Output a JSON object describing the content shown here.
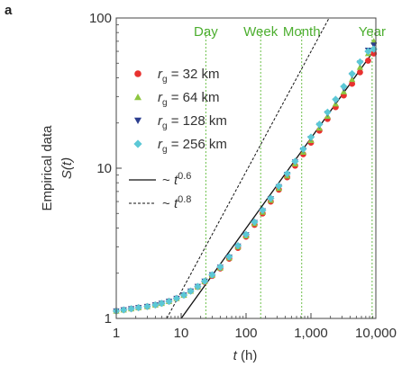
{
  "chart_data": {
    "type": "scatter",
    "panel_label": "a",
    "xscale": "log",
    "yscale": "log",
    "xlim": [
      1,
      10000
    ],
    "ylim": [
      1,
      100
    ],
    "x_ticks": [
      1,
      10,
      100,
      1000,
      10000
    ],
    "x_tick_labels": [
      "1",
      "10",
      "100",
      "1,000",
      "10,000"
    ],
    "y_ticks": [
      1,
      10,
      100
    ],
    "y_tick_labels": [
      "1",
      "10",
      "100"
    ],
    "xlabel_var": "t",
    "xlabel_unit": " (h)",
    "ylabel_line1": "Empirical data",
    "ylabel_line2": "S(t)",
    "grid": false,
    "legend_position": "upper-left",
    "event_markers": [
      {
        "label": "Day",
        "x": 24
      },
      {
        "label": "Week",
        "x": 168
      },
      {
        "label": "Month",
        "x": 720
      },
      {
        "label": "Year",
        "x": 8760
      }
    ],
    "series": [
      {
        "name_prefix": "r",
        "name_sub": "g",
        "name_value": " = 32 km",
        "marker": "circle",
        "color": "#e8312f",
        "points": [
          [
            1,
            1.12
          ],
          [
            1.3,
            1.14
          ],
          [
            1.7,
            1.16
          ],
          [
            2.2,
            1.18
          ],
          [
            3,
            1.2
          ],
          [
            4,
            1.23
          ],
          [
            5,
            1.26
          ],
          [
            6.5,
            1.3
          ],
          [
            8.5,
            1.36
          ],
          [
            11,
            1.43
          ],
          [
            14,
            1.52
          ],
          [
            18,
            1.62
          ],
          [
            23,
            1.75
          ],
          [
            30,
            1.92
          ],
          [
            40,
            2.15
          ],
          [
            55,
            2.5
          ],
          [
            75,
            2.95
          ],
          [
            100,
            3.5
          ],
          [
            135,
            4.2
          ],
          [
            180,
            5.0
          ],
          [
            240,
            6.0
          ],
          [
            320,
            7.2
          ],
          [
            430,
            8.7
          ],
          [
            570,
            10.4
          ],
          [
            760,
            12.4
          ],
          [
            1000,
            14.8
          ],
          [
            1350,
            17.8
          ],
          [
            1800,
            21.3
          ],
          [
            2400,
            25.5
          ],
          [
            3200,
            30.5
          ],
          [
            4300,
            36.5
          ],
          [
            5700,
            43.5
          ],
          [
            7600,
            52
          ],
          [
            9300,
            58
          ]
        ]
      },
      {
        "name_prefix": "r",
        "name_sub": "g",
        "name_value": " = 64 km",
        "marker": "triangle-up",
        "color": "#8dc63f",
        "points": [
          [
            1,
            1.12
          ],
          [
            1.3,
            1.14
          ],
          [
            1.7,
            1.16
          ],
          [
            2.2,
            1.18
          ],
          [
            3,
            1.2
          ],
          [
            4,
            1.23
          ],
          [
            5,
            1.26
          ],
          [
            6.5,
            1.3
          ],
          [
            8.5,
            1.36
          ],
          [
            11,
            1.43
          ],
          [
            14,
            1.52
          ],
          [
            18,
            1.62
          ],
          [
            23,
            1.76
          ],
          [
            30,
            1.94
          ],
          [
            40,
            2.17
          ],
          [
            55,
            2.53
          ],
          [
            75,
            3.0
          ],
          [
            100,
            3.55
          ],
          [
            135,
            4.28
          ],
          [
            180,
            5.1
          ],
          [
            240,
            6.12
          ],
          [
            320,
            7.35
          ],
          [
            430,
            8.9
          ],
          [
            570,
            10.7
          ],
          [
            760,
            12.8
          ],
          [
            1000,
            15.3
          ],
          [
            1350,
            18.5
          ],
          [
            1800,
            22.2
          ],
          [
            2400,
            26.8
          ],
          [
            3200,
            32.3
          ],
          [
            4300,
            39
          ],
          [
            5700,
            47
          ],
          [
            7600,
            58
          ],
          [
            9300,
            70
          ]
        ]
      },
      {
        "name_prefix": "r",
        "name_sub": "g",
        "name_value": " = 128 km",
        "marker": "triangle-down",
        "color": "#2c3e8f",
        "points": [
          [
            1,
            1.12
          ],
          [
            1.3,
            1.14
          ],
          [
            1.7,
            1.16
          ],
          [
            2.2,
            1.18
          ],
          [
            3,
            1.2
          ],
          [
            4,
            1.23
          ],
          [
            5,
            1.26
          ],
          [
            6.5,
            1.3
          ],
          [
            8.5,
            1.36
          ],
          [
            11,
            1.43
          ],
          [
            14,
            1.52
          ],
          [
            18,
            1.63
          ],
          [
            23,
            1.77
          ],
          [
            30,
            1.95
          ],
          [
            40,
            2.19
          ],
          [
            55,
            2.56
          ],
          [
            75,
            3.03
          ],
          [
            100,
            3.6
          ],
          [
            135,
            4.35
          ],
          [
            180,
            5.2
          ],
          [
            240,
            6.25
          ],
          [
            320,
            7.52
          ],
          [
            430,
            9.1
          ],
          [
            570,
            11.0
          ],
          [
            760,
            13.2
          ],
          [
            1000,
            15.8
          ],
          [
            1350,
            19.2
          ],
          [
            1800,
            23.1
          ],
          [
            2400,
            28
          ],
          [
            3200,
            34
          ],
          [
            4300,
            41.5
          ],
          [
            5700,
            50
          ],
          [
            7600,
            61
          ],
          [
            9300,
            66
          ]
        ]
      },
      {
        "name_prefix": "r",
        "name_sub": "g",
        "name_value": " = 256 km",
        "marker": "diamond",
        "color": "#5cc8d6",
        "points": [
          [
            1,
            1.12
          ],
          [
            1.3,
            1.14
          ],
          [
            1.7,
            1.16
          ],
          [
            2.2,
            1.18
          ],
          [
            3,
            1.2
          ],
          [
            4,
            1.23
          ],
          [
            5,
            1.26
          ],
          [
            6.5,
            1.3
          ],
          [
            8.5,
            1.36
          ],
          [
            11,
            1.43
          ],
          [
            14,
            1.52
          ],
          [
            18,
            1.63
          ],
          [
            23,
            1.77
          ],
          [
            30,
            1.95
          ],
          [
            40,
            2.2
          ],
          [
            55,
            2.57
          ],
          [
            75,
            3.05
          ],
          [
            100,
            3.62
          ],
          [
            135,
            4.38
          ],
          [
            180,
            5.25
          ],
          [
            240,
            6.3
          ],
          [
            320,
            7.6
          ],
          [
            430,
            9.2
          ],
          [
            570,
            11.1
          ],
          [
            760,
            13.4
          ],
          [
            1000,
            16.1
          ],
          [
            1350,
            19.6
          ],
          [
            1800,
            23.6
          ],
          [
            2400,
            28.7
          ],
          [
            3200,
            35
          ],
          [
            4300,
            42.5
          ],
          [
            5700,
            51
          ],
          [
            7600,
            60
          ],
          [
            9300,
            62
          ]
        ]
      }
    ],
    "fit_lines": [
      {
        "label_prefix": "~ t",
        "exponent": "0.6",
        "style": "solid",
        "color": "#111111",
        "x": [
          10,
          10000
        ],
        "y": [
          1.0,
          63.1
        ]
      },
      {
        "label_prefix": "~ t",
        "exponent": "0.8",
        "style": "dashed",
        "color": "#111111",
        "x": [
          6,
          2850
        ],
        "y": [
          1.0,
          138
        ]
      }
    ]
  }
}
